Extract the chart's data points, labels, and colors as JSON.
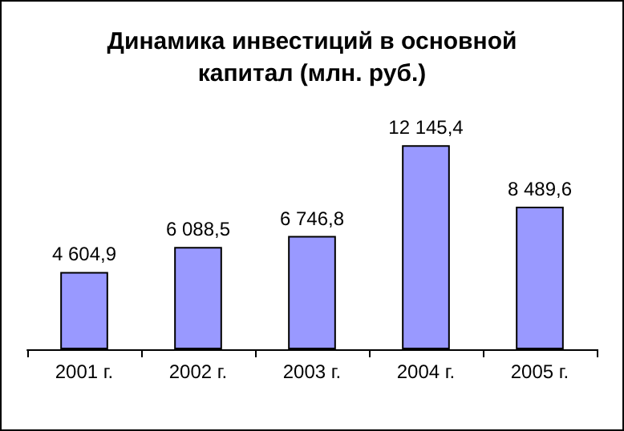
{
  "chart_data": {
    "type": "bar",
    "title": "Динамика инвестиций в основной\nкапитал (млн. руб.)",
    "categories": [
      "2001 г.",
      "2002 г.",
      "2003 г.",
      "2004 г.",
      "2005 г."
    ],
    "values": [
      4604.9,
      6088.5,
      6746.8,
      12145.4,
      8489.6
    ],
    "value_labels": [
      "4 604,9",
      "6 088,5",
      "6 746,8",
      "12 145,4",
      "8 489,6"
    ],
    "color": "#9999ff"
  }
}
